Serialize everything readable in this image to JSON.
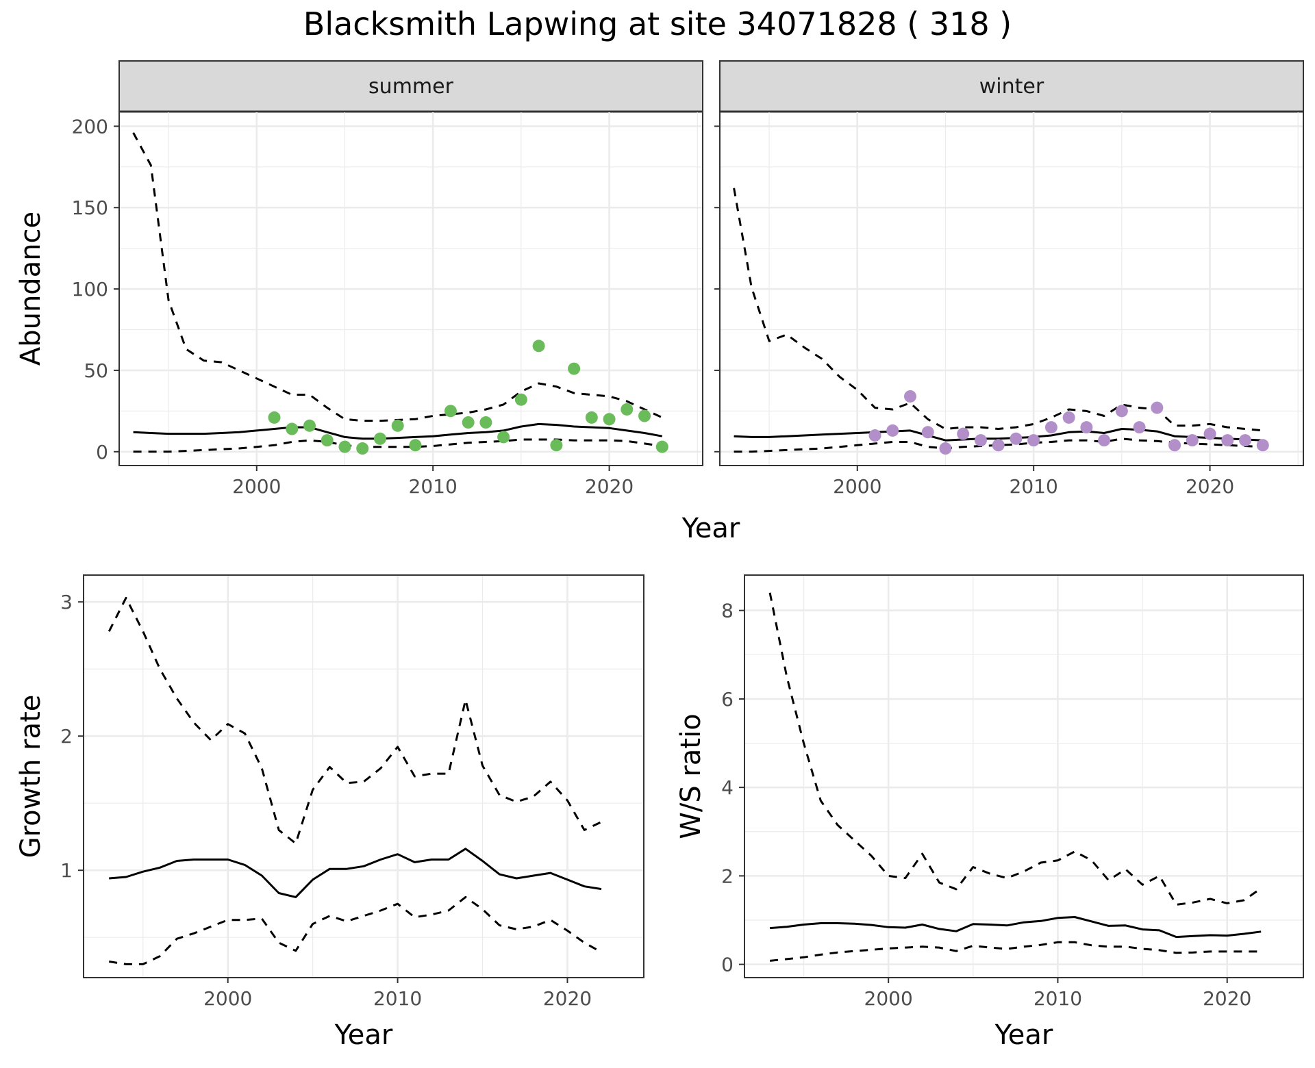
{
  "title": "Blacksmith Lapwing at site 34071828 ( 318 )",
  "colors": {
    "summer_points": "#6abb59",
    "winter_points": "#b38fc9",
    "strip_fill": "#d9d9d9",
    "grid": "#ebebeb",
    "line": "#000000"
  },
  "chart_data": [
    {
      "type": "line",
      "panel": "summer",
      "strip_label": "summer",
      "ylabel": "Abundance",
      "xlabel": "Year",
      "xlim": [
        1992.2,
        2025.3
      ],
      "ylim": [
        -8.5,
        209
      ],
      "xticks": [
        2000,
        2010,
        2020
      ],
      "yticks": [
        0,
        50,
        100,
        150,
        200
      ],
      "grid": true,
      "series": [
        {
          "role": "fit",
          "style": "solid",
          "x": [
            1993,
            1994,
            1995,
            1996,
            1997,
            1998,
            1999,
            2000,
            2001,
            2002,
            2003,
            2004,
            2005,
            2006,
            2007,
            2008,
            2009,
            2010,
            2011,
            2012,
            2013,
            2014,
            2015,
            2016,
            2017,
            2018,
            2019,
            2020,
            2021,
            2022,
            2023
          ],
          "y": [
            12,
            11.5,
            11,
            11,
            11,
            11.5,
            12,
            13,
            14,
            15,
            15,
            12,
            9,
            8,
            8,
            8.5,
            9,
            9.5,
            10.5,
            11.5,
            12,
            13,
            15.5,
            17,
            16.5,
            15.5,
            15,
            14.5,
            13,
            11.5,
            9.5
          ]
        },
        {
          "role": "upper",
          "style": "dashed",
          "x": [
            1993,
            1994,
            1995,
            1996,
            1997,
            1998,
            1999,
            2000,
            2001,
            2002,
            2003,
            2004,
            2005,
            2006,
            2007,
            2008,
            2009,
            2010,
            2011,
            2012,
            2013,
            2014,
            2015,
            2016,
            2017,
            2018,
            2019,
            2020,
            2021,
            2022,
            2023
          ],
          "y": [
            196,
            176,
            93,
            63,
            56,
            55,
            50,
            45,
            40,
            35,
            35,
            27,
            20,
            19,
            19,
            19.5,
            20,
            22,
            23,
            24,
            26,
            29,
            37,
            42,
            40,
            36,
            35,
            34,
            31,
            26,
            21
          ]
        },
        {
          "role": "lower",
          "style": "dashed",
          "x": [
            1993,
            1994,
            1995,
            1996,
            1997,
            1998,
            1999,
            2000,
            2001,
            2002,
            2003,
            2004,
            2005,
            2006,
            2007,
            2008,
            2009,
            2010,
            2011,
            2012,
            2013,
            2014,
            2015,
            2016,
            2017,
            2018,
            2019,
            2020,
            2021,
            2022,
            2023
          ],
          "y": [
            0,
            0,
            0,
            0.5,
            1,
            1.5,
            2,
            3,
            4,
            6,
            7,
            6,
            4,
            3,
            3,
            3,
            3,
            3.5,
            4.5,
            5.5,
            6,
            6.5,
            7.5,
            7.5,
            7.5,
            7,
            7,
            7,
            6.5,
            5,
            3.5
          ]
        },
        {
          "role": "observed",
          "style": "points",
          "x": [
            2001,
            2002,
            2003,
            2004,
            2005,
            2006,
            2007,
            2008,
            2009,
            2011,
            2012,
            2013,
            2014,
            2015,
            2016,
            2017,
            2018,
            2019,
            2020,
            2021,
            2022,
            2023
          ],
          "y": [
            21,
            14,
            16,
            7,
            3,
            2,
            8,
            16,
            4,
            25,
            18,
            18,
            9,
            32,
            65,
            4,
            51,
            21,
            20,
            26,
            22,
            3
          ]
        }
      ]
    },
    {
      "type": "line",
      "panel": "winter",
      "strip_label": "winter",
      "xlabel": "Year",
      "xlim": [
        1992.2,
        2025.3
      ],
      "ylim": [
        -8.5,
        209
      ],
      "xticks": [
        2000,
        2010,
        2020
      ],
      "yticks": [
        0,
        50,
        100,
        150,
        200
      ],
      "grid": true,
      "series": [
        {
          "role": "fit",
          "style": "solid",
          "x": [
            1993,
            1994,
            1995,
            1996,
            1997,
            1998,
            1999,
            2000,
            2001,
            2002,
            2003,
            2004,
            2005,
            2006,
            2007,
            2008,
            2009,
            2010,
            2011,
            2012,
            2013,
            2014,
            2015,
            2016,
            2017,
            2018,
            2019,
            2020,
            2021,
            2022,
            2023
          ],
          "y": [
            9.5,
            9,
            9,
            9.5,
            10,
            10.5,
            11,
            11.5,
            12,
            12.5,
            13,
            10,
            7,
            7.5,
            8,
            8,
            8.5,
            9,
            10,
            12,
            12.5,
            11.5,
            14,
            13.5,
            12.5,
            9.5,
            9,
            8.5,
            8,
            7.5,
            7
          ]
        },
        {
          "role": "upper",
          "style": "dashed",
          "x": [
            1993,
            1994,
            1995,
            1996,
            1997,
            1998,
            1999,
            2000,
            2001,
            2002,
            2003,
            2004,
            2005,
            2006,
            2007,
            2008,
            2009,
            2010,
            2011,
            2012,
            2013,
            2014,
            2015,
            2016,
            2017,
            2018,
            2019,
            2020,
            2021,
            2022,
            2023
          ],
          "y": [
            162,
            101,
            68,
            72,
            64,
            57,
            46,
            38,
            27,
            26,
            30,
            20,
            14,
            15,
            15,
            14,
            15,
            17,
            21,
            26,
            25,
            22,
            29,
            27,
            26,
            16,
            16,
            17,
            15,
            14,
            13
          ]
        },
        {
          "role": "lower",
          "style": "dashed",
          "x": [
            1993,
            1994,
            1995,
            1996,
            1997,
            1998,
            1999,
            2000,
            2001,
            2002,
            2003,
            2004,
            2005,
            2006,
            2007,
            2008,
            2009,
            2010,
            2011,
            2012,
            2013,
            2014,
            2015,
            2016,
            2017,
            2018,
            2019,
            2020,
            2021,
            2022,
            2023
          ],
          "y": [
            0,
            0,
            0.5,
            1,
            1.5,
            2,
            3,
            4,
            5,
            6,
            6,
            3,
            2,
            3,
            3.5,
            4,
            4.5,
            5.5,
            6,
            7,
            7,
            6,
            8,
            7,
            6.5,
            5.5,
            5,
            4.5,
            4,
            3.5,
            3
          ]
        },
        {
          "role": "observed",
          "style": "points",
          "x": [
            2001,
            2002,
            2003,
            2004,
            2005,
            2006,
            2007,
            2008,
            2009,
            2010,
            2011,
            2012,
            2013,
            2014,
            2015,
            2016,
            2017,
            2018,
            2019,
            2020,
            2021,
            2022,
            2023
          ],
          "y": [
            10,
            13,
            34,
            12,
            2,
            11,
            7,
            4,
            8,
            7,
            15,
            21,
            15,
            7,
            25,
            15,
            27,
            4,
            7,
            11,
            7,
            7,
            4
          ]
        }
      ]
    },
    {
      "type": "line",
      "panel": "growth",
      "ylabel": "Growth rate",
      "xlabel": "Year",
      "xlim": [
        1991.5,
        2024.5
      ],
      "ylim": [
        0.2,
        3.2
      ],
      "xticks": [
        2000,
        2010,
        2020
      ],
      "yticks": [
        1,
        2,
        3
      ],
      "grid": true,
      "series": [
        {
          "role": "fit",
          "style": "solid",
          "x": [
            1993,
            1994,
            1995,
            1996,
            1997,
            1998,
            1999,
            2000,
            2001,
            2002,
            2003,
            2004,
            2005,
            2006,
            2007,
            2008,
            2009,
            2010,
            2011,
            2012,
            2013,
            2014,
            2015,
            2016,
            2017,
            2018,
            2019,
            2020,
            2021,
            2022
          ],
          "y": [
            0.94,
            0.95,
            0.99,
            1.02,
            1.07,
            1.08,
            1.08,
            1.08,
            1.04,
            0.96,
            0.83,
            0.8,
            0.93,
            1.01,
            1.01,
            1.03,
            1.08,
            1.12,
            1.06,
            1.08,
            1.08,
            1.16,
            1.07,
            0.97,
            0.94,
            0.96,
            0.98,
            0.93,
            0.88,
            0.86
          ]
        },
        {
          "role": "upper",
          "style": "dashed",
          "x": [
            1993,
            1994,
            1995,
            1996,
            1997,
            1998,
            1999,
            2000,
            2001,
            2002,
            2003,
            2004,
            2005,
            2006,
            2007,
            2008,
            2009,
            2010,
            2011,
            2012,
            2013,
            2014,
            2015,
            2016,
            2017,
            2018,
            2019,
            2020,
            2021,
            2022
          ],
          "y": [
            2.78,
            3.03,
            2.78,
            2.5,
            2.28,
            2.1,
            1.97,
            2.09,
            2.02,
            1.76,
            1.3,
            1.2,
            1.6,
            1.77,
            1.65,
            1.66,
            1.76,
            1.92,
            1.7,
            1.72,
            1.72,
            2.27,
            1.78,
            1.56,
            1.51,
            1.55,
            1.66,
            1.52,
            1.3,
            1.36
          ]
        },
        {
          "role": "lower",
          "style": "dashed",
          "x": [
            1993,
            1994,
            1995,
            1996,
            1997,
            1998,
            1999,
            2000,
            2001,
            2002,
            2003,
            2004,
            2005,
            2006,
            2007,
            2008,
            2009,
            2010,
            2011,
            2012,
            2013,
            2014,
            2015,
            2016,
            2017,
            2018,
            2019,
            2020,
            2021,
            2022
          ],
          "y": [
            0.32,
            0.3,
            0.3,
            0.36,
            0.49,
            0.53,
            0.58,
            0.63,
            0.63,
            0.64,
            0.46,
            0.4,
            0.6,
            0.66,
            0.62,
            0.66,
            0.7,
            0.75,
            0.65,
            0.67,
            0.7,
            0.8,
            0.71,
            0.59,
            0.56,
            0.58,
            0.63,
            0.55,
            0.46,
            0.39
          ]
        }
      ]
    },
    {
      "type": "line",
      "panel": "ratio",
      "ylabel": "W/S ratio",
      "xlabel": "Year",
      "xlim": [
        1991.5,
        2024.5
      ],
      "ylim": [
        -0.3,
        8.8
      ],
      "xticks": [
        2000,
        2010,
        2020
      ],
      "yticks": [
        0,
        2,
        4,
        6,
        8
      ],
      "grid": true,
      "series": [
        {
          "role": "fit",
          "style": "solid",
          "x": [
            1993,
            1994,
            1995,
            1996,
            1997,
            1998,
            1999,
            2000,
            2001,
            2002,
            2003,
            2004,
            2005,
            2006,
            2007,
            2008,
            2009,
            2010,
            2011,
            2012,
            2013,
            2014,
            2015,
            2016,
            2017,
            2018,
            2019,
            2020,
            2021,
            2022
          ],
          "y": [
            0.82,
            0.85,
            0.9,
            0.93,
            0.93,
            0.92,
            0.89,
            0.84,
            0.83,
            0.9,
            0.8,
            0.75,
            0.91,
            0.9,
            0.88,
            0.95,
            0.98,
            1.05,
            1.07,
            0.97,
            0.87,
            0.88,
            0.79,
            0.77,
            0.62,
            0.64,
            0.66,
            0.65,
            0.69,
            0.74
          ]
        },
        {
          "role": "upper",
          "style": "dashed",
          "x": [
            1993,
            1994,
            1995,
            1996,
            1997,
            1998,
            1999,
            2000,
            2001,
            2002,
            2003,
            2004,
            2005,
            2006,
            2007,
            2008,
            2009,
            2010,
            2011,
            2012,
            2013,
            2014,
            2015,
            2016,
            2017,
            2018,
            2019,
            2020,
            2021,
            2022
          ],
          "y": [
            8.4,
            6.5,
            5.0,
            3.7,
            3.15,
            2.8,
            2.45,
            2.0,
            1.95,
            2.5,
            1.85,
            1.7,
            2.2,
            2.05,
            1.95,
            2.1,
            2.3,
            2.35,
            2.55,
            2.35,
            1.9,
            2.15,
            1.8,
            2.0,
            1.35,
            1.4,
            1.48,
            1.38,
            1.45,
            1.72
          ]
        },
        {
          "role": "lower",
          "style": "dashed",
          "x": [
            1993,
            1994,
            1995,
            1996,
            1997,
            1998,
            1999,
            2000,
            2001,
            2002,
            2003,
            2004,
            2005,
            2006,
            2007,
            2008,
            2009,
            2010,
            2011,
            2012,
            2013,
            2014,
            2015,
            2016,
            2017,
            2018,
            2019,
            2020,
            2021,
            2022
          ],
          "y": [
            0.08,
            0.12,
            0.16,
            0.22,
            0.27,
            0.3,
            0.33,
            0.36,
            0.38,
            0.4,
            0.38,
            0.3,
            0.42,
            0.38,
            0.35,
            0.4,
            0.44,
            0.5,
            0.5,
            0.43,
            0.4,
            0.4,
            0.35,
            0.32,
            0.26,
            0.27,
            0.29,
            0.29,
            0.29,
            0.29
          ]
        }
      ]
    }
  ]
}
